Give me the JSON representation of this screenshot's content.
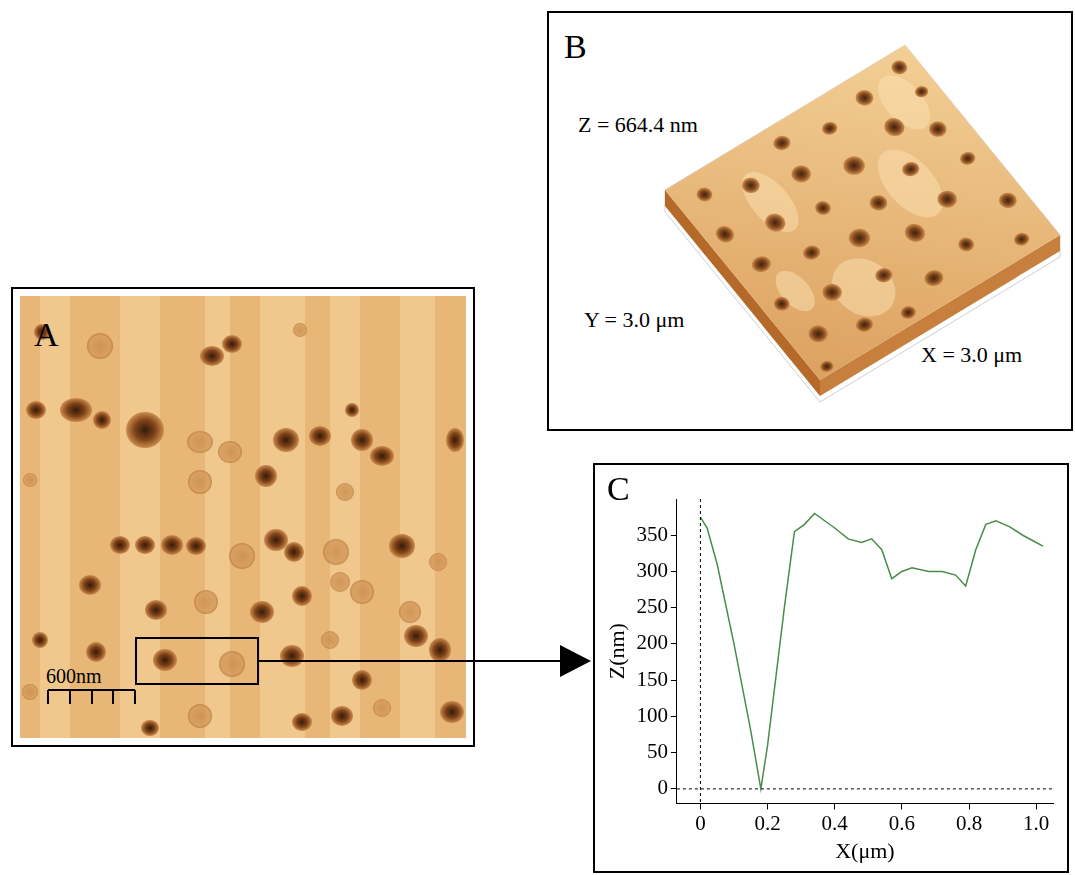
{
  "panels": [
    {
      "label": "A",
      "scale_bar": "600nm"
    },
    {
      "label": "B",
      "z_label": "Z = 664.4 nm",
      "y_label": "Y = 3.0 μm",
      "x_label": "X = 3.0 μm"
    },
    {
      "label": "C"
    }
  ],
  "chart_data": {
    "type": "line",
    "x_label": "X(μm)",
    "y_label": "Z(nm)",
    "x": [
      0,
      0.02,
      0.05,
      0.1,
      0.15,
      0.18,
      0.2,
      0.25,
      0.28,
      0.31,
      0.34,
      0.37,
      0.4,
      0.44,
      0.48,
      0.51,
      0.54,
      0.57,
      0.6,
      0.63,
      0.68,
      0.72,
      0.76,
      0.79,
      0.82,
      0.85,
      0.88,
      0.92,
      0.96,
      1.0,
      1.02
    ],
    "values": [
      375,
      360,
      310,
      200,
      80,
      0,
      60,
      250,
      355,
      365,
      380,
      370,
      360,
      345,
      340,
      345,
      330,
      290,
      300,
      305,
      300,
      300,
      295,
      280,
      330,
      365,
      370,
      362,
      350,
      340,
      335
    ],
    "color": "#4a8c4a",
    "line_style": "solid",
    "xlim": [
      -0.07,
      1.05
    ],
    "xticks": [
      0,
      0.2,
      0.4,
      0.6,
      0.8,
      {
        "value": 1,
        "label": "1.0"
      }
    ],
    "ylim": [
      -20,
      400
    ],
    "yticks": [
      0,
      50,
      100,
      150,
      200,
      250,
      300,
      350
    ],
    "grid": false
  }
}
